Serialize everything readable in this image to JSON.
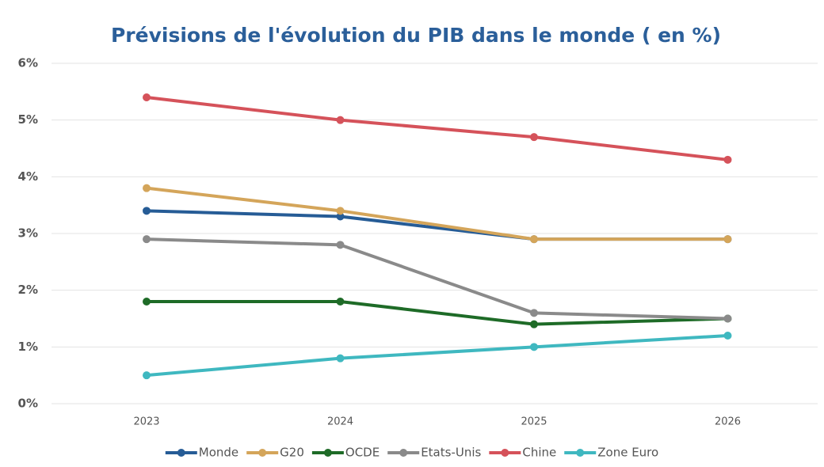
{
  "chart_data": {
    "type": "line",
    "title": "Prévisions de l'évolution du PIB dans le monde ( en %)",
    "categories": [
      "2023",
      "2024",
      "2025",
      "2026"
    ],
    "series": [
      {
        "name": "Monde",
        "color": "#265c96",
        "values": [
          3.4,
          3.3,
          2.9,
          2.9
        ]
      },
      {
        "name": "G20",
        "color": "#d4a55a",
        "values": [
          3.8,
          3.4,
          2.9,
          2.9
        ]
      },
      {
        "name": "OCDE",
        "color": "#1e6b27",
        "values": [
          1.8,
          1.8,
          1.4,
          1.5
        ]
      },
      {
        "name": "Etats-Unis",
        "color": "#8a8a8a",
        "values": [
          2.9,
          2.8,
          1.6,
          1.5
        ]
      },
      {
        "name": "Chine",
        "color": "#d5525a",
        "values": [
          5.4,
          5.0,
          4.7,
          4.3
        ]
      },
      {
        "name": "Zone Euro",
        "color": "#3fb8c0",
        "values": [
          0.5,
          0.8,
          1.0,
          1.2
        ]
      }
    ],
    "ylim": [
      0,
      6
    ],
    "yticks": [
      {
        "value": 0,
        "label": "0%"
      },
      {
        "value": 1,
        "label": "1%"
      },
      {
        "value": 2,
        "label": "2%"
      },
      {
        "value": 3,
        "label": "3%"
      },
      {
        "value": 4,
        "label": "4%"
      },
      {
        "value": 5,
        "label": "5%"
      },
      {
        "value": 6,
        "label": "6%"
      }
    ],
    "grid": true,
    "legend": "bottom"
  }
}
